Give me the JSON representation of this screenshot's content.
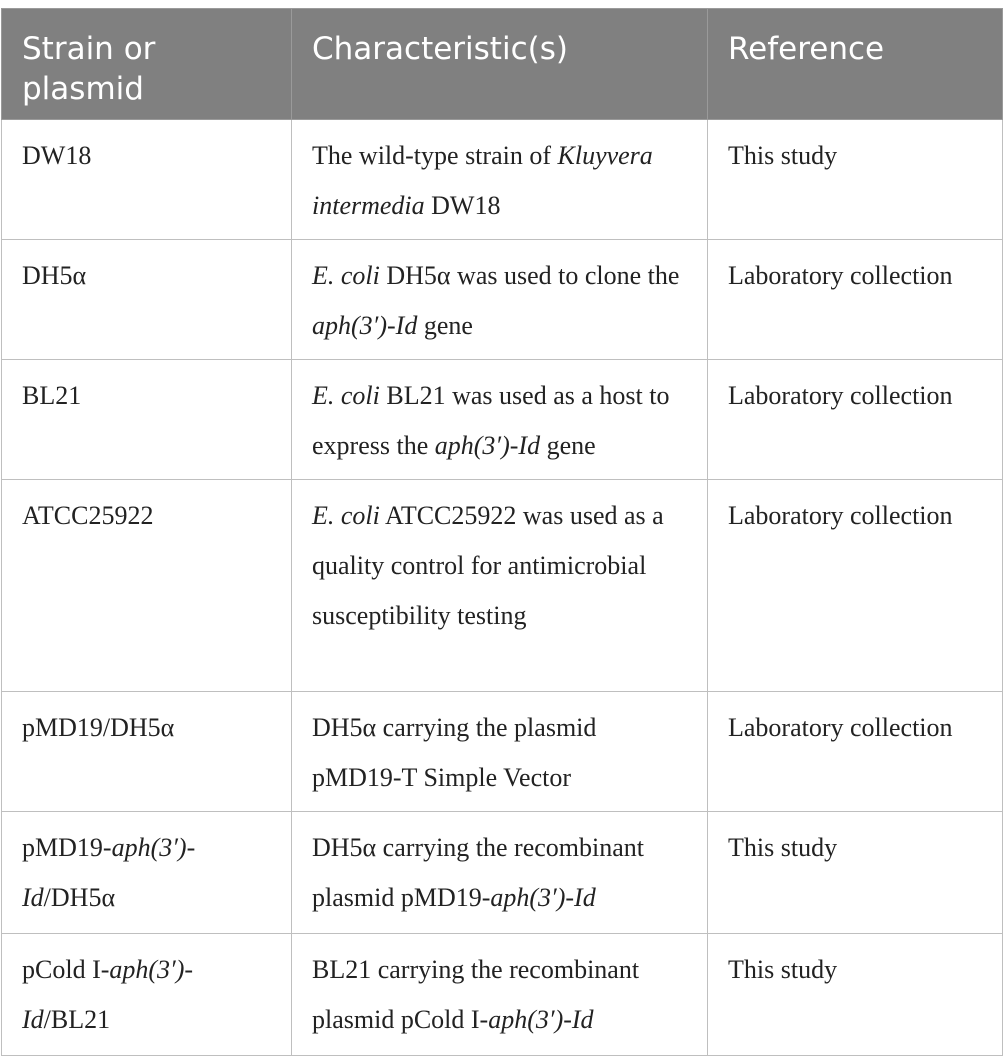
{
  "headers": [
    "Strain or plasmid",
    "Characteristic(s)",
    "Reference"
  ],
  "rows": [
    {
      "strain": [
        {
          "t": "DW18"
        }
      ],
      "char": [
        {
          "t": "The wild-type strain of "
        },
        {
          "t": "Kluyvera intermedia",
          "i": true
        },
        {
          "t": " DW18"
        }
      ],
      "ref": "This study"
    },
    {
      "strain": [
        {
          "t": "DH5α"
        }
      ],
      "char": [
        {
          "t": "E. coli",
          "i": true
        },
        {
          "t": " DH5α was used to clone the "
        },
        {
          "t": "aph(3′)-Id",
          "i": true
        },
        {
          "t": " gene"
        }
      ],
      "ref": "Laboratory collection"
    },
    {
      "strain": [
        {
          "t": "BL21"
        }
      ],
      "char": [
        {
          "t": "E. coli",
          "i": true
        },
        {
          "t": " BL21 was used as a host to express the "
        },
        {
          "t": "aph(3′)-Id",
          "i": true
        },
        {
          "t": " gene"
        }
      ],
      "ref": "Laboratory collection"
    },
    {
      "strain": [
        {
          "t": "ATCC25922"
        }
      ],
      "char": [
        {
          "t": "E. coli",
          "i": true
        },
        {
          "t": " ATCC25922 was used as a quality control for antimicrobial susceptibility testing"
        }
      ],
      "ref": "Laboratory collection"
    },
    {
      "strain": [
        {
          "t": "pMD19/DH5α"
        }
      ],
      "char": [
        {
          "t": "DH5α carrying the plasmid pMD19-T Simple Vector"
        }
      ],
      "ref": "Laboratory collection"
    },
    {
      "strain": [
        {
          "t": "pMD19-"
        },
        {
          "t": "aph(3′)-Id",
          "i": true
        },
        {
          "t": "/DH5α"
        }
      ],
      "char": [
        {
          "t": "DH5α carrying the recombinant plasmid pMD19-"
        },
        {
          "t": "aph(3′)-Id",
          "i": true
        }
      ],
      "ref": "This study"
    },
    {
      "strain": [
        {
          "t": "pCold I-"
        },
        {
          "t": "aph(3′)-Id",
          "i": true
        },
        {
          "t": "/BL21"
        }
      ],
      "char": [
        {
          "t": "BL21 carrying the recombinant plasmid pCold I-"
        },
        {
          "t": "aph(3′)-Id",
          "i": true
        }
      ],
      "ref": "This study"
    }
  ]
}
